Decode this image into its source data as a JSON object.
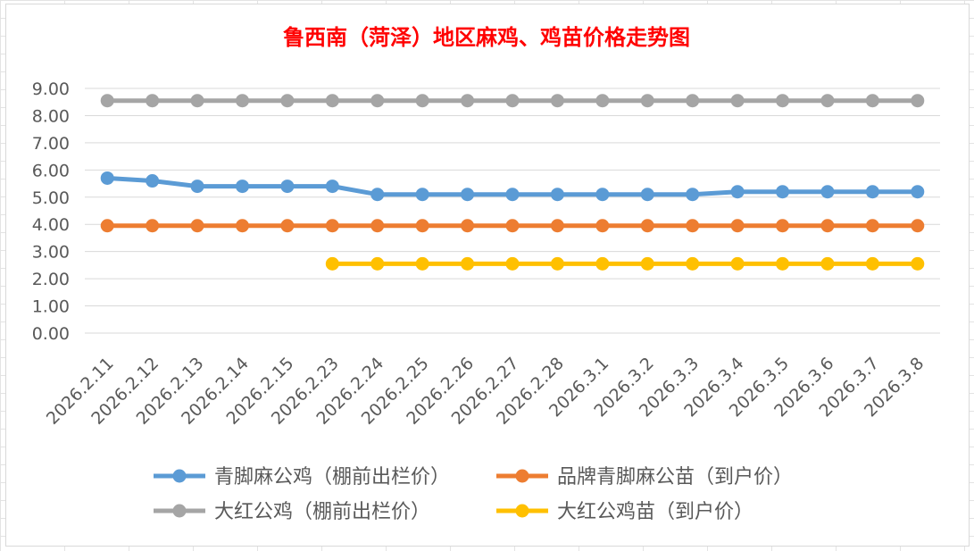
{
  "chart_data": {
    "type": "line",
    "title": "鲁西南（菏泽）地区麻鸡、鸡苗价格走势图",
    "xlabel": "",
    "ylabel": "",
    "ylim": [
      0,
      9
    ],
    "yticks": [
      "0.00",
      "1.00",
      "2.00",
      "3.00",
      "4.00",
      "5.00",
      "6.00",
      "7.00",
      "8.00",
      "9.00"
    ],
    "grid": true,
    "legend_position": "bottom",
    "categories": [
      "2026.2.11",
      "2026.2.12",
      "2026.2.13",
      "2026.2.14",
      "2026.2.15",
      "2026.2.23",
      "2026.2.24",
      "2026.2.25",
      "2026.2.26",
      "2026.2.27",
      "2026.2.28",
      "2026.3.1",
      "2026.3.2",
      "2026.3.3",
      "2026.3.4",
      "2026.3.5",
      "2026.3.6",
      "2026.3.7",
      "2026.3.8"
    ],
    "series": [
      {
        "name": "青脚麻公鸡（棚前出栏价）",
        "color": "#5b9bd5",
        "values": [
          5.7,
          5.6,
          5.4,
          5.4,
          5.4,
          5.4,
          5.1,
          5.1,
          5.1,
          5.1,
          5.1,
          5.1,
          5.1,
          5.1,
          5.2,
          5.2,
          5.2,
          5.2,
          5.2
        ]
      },
      {
        "name": "品牌青脚麻公苗（到户价）",
        "color": "#ed7d31",
        "values": [
          3.95,
          3.95,
          3.95,
          3.95,
          3.95,
          3.95,
          3.95,
          3.95,
          3.95,
          3.95,
          3.95,
          3.95,
          3.95,
          3.95,
          3.95,
          3.95,
          3.95,
          3.95,
          3.95
        ]
      },
      {
        "name": "大红公鸡（棚前出栏价）",
        "color": "#a5a5a5",
        "values": [
          8.55,
          8.55,
          8.55,
          8.55,
          8.55,
          8.55,
          8.55,
          8.55,
          8.55,
          8.55,
          8.55,
          8.55,
          8.55,
          8.55,
          8.55,
          8.55,
          8.55,
          8.55,
          8.55
        ]
      },
      {
        "name": "大红公鸡苗（到户价）",
        "color": "#ffc000",
        "values": [
          null,
          null,
          null,
          null,
          null,
          2.55,
          2.55,
          2.55,
          2.55,
          2.55,
          2.55,
          2.55,
          2.55,
          2.55,
          2.55,
          2.55,
          2.55,
          2.55,
          2.55
        ]
      }
    ]
  },
  "colors": {
    "title": "#ff0000",
    "grid": "#d9d9d9",
    "tick_text": "#595959"
  }
}
